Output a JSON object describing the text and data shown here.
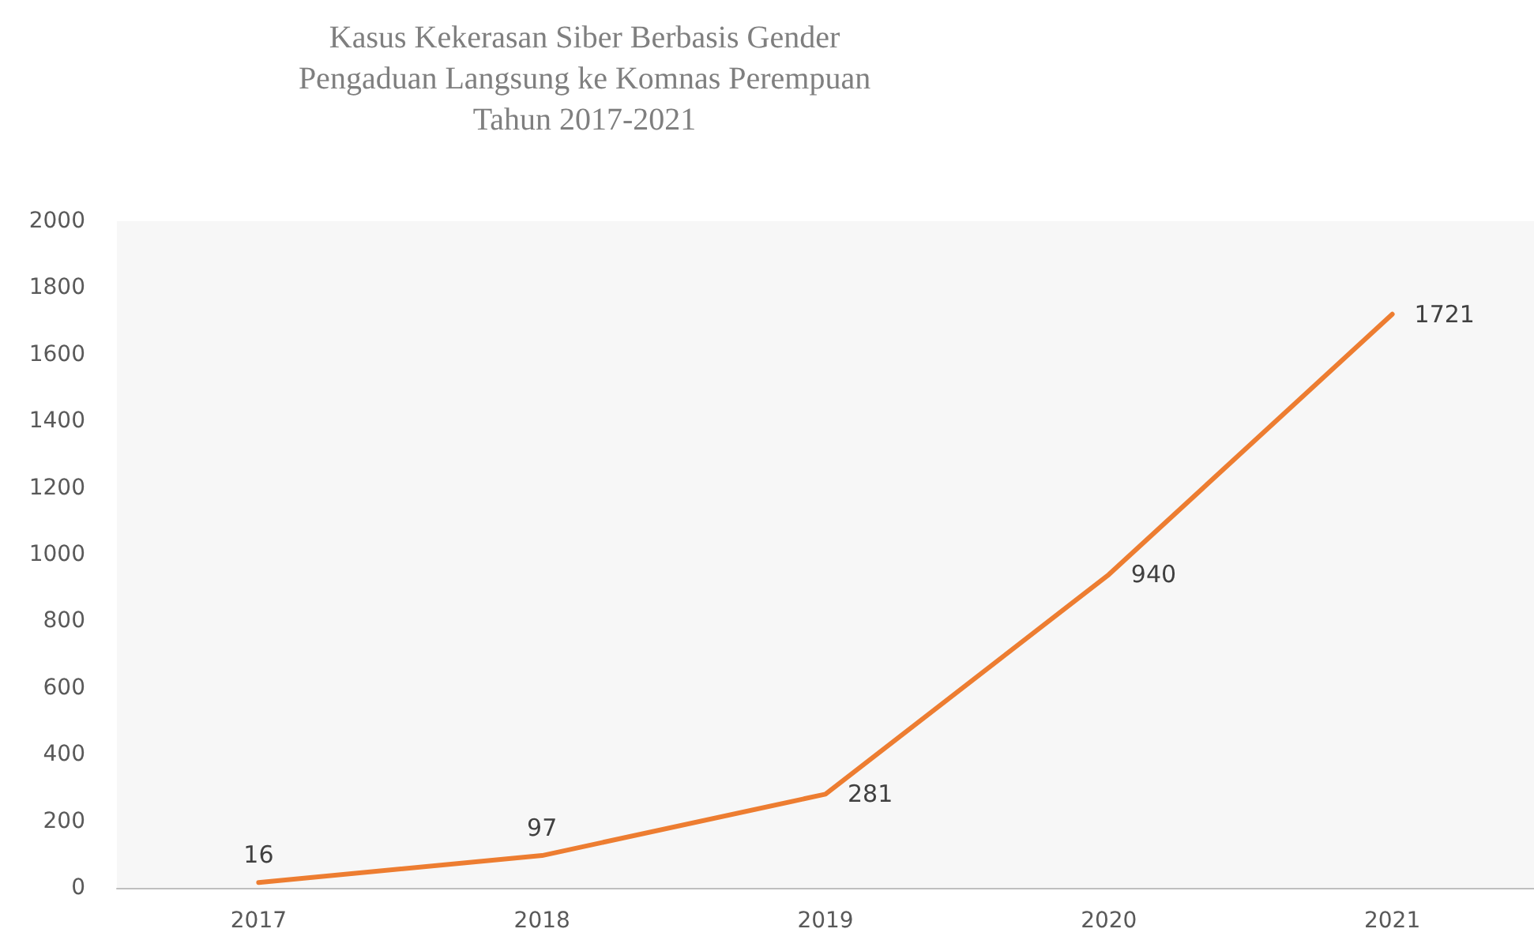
{
  "chart_data": {
    "type": "line",
    "title": "Kasus Kekerasan Siber Berbasis Gender\nPengaduan Langsung ke Komnas Perempuan\nTahun 2017-2021",
    "categories": [
      "2017",
      "2018",
      "2019",
      "2020",
      "2021"
    ],
    "series": [
      {
        "color": "#ed7d31",
        "values": [
          16,
          97,
          281,
          940,
          1721
        ]
      }
    ],
    "ylim": [
      0,
      2000
    ],
    "yticks": [
      0,
      200,
      400,
      600,
      800,
      1000,
      1200,
      1400,
      1600,
      1800,
      2000
    ],
    "data_labels": true,
    "grid": false,
    "marker": "none",
    "line_style": "solid"
  }
}
